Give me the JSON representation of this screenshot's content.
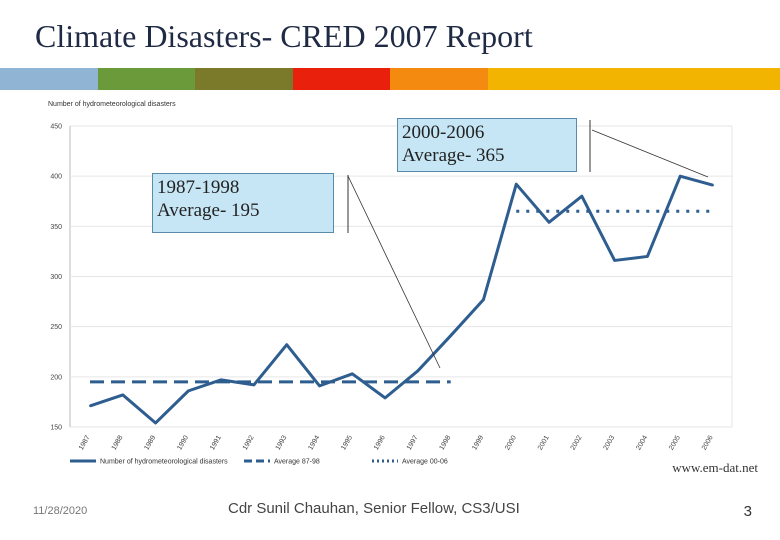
{
  "slide": {
    "title": "Climate Disasters- CRED 2007 Report",
    "stripe_colors": [
      "#8fb4d4",
      "#6b9a3a",
      "#7a7a2a",
      "#e8200c",
      "#f58a10",
      "#f2b400",
      "#f2b400",
      "#f2b400"
    ],
    "source": "www.em-dat.net",
    "footer_date": "11/28/2020",
    "footer_text": "Cdr Sunil Chauhan, Senior Fellow, CS3/USI",
    "page_number": "3"
  },
  "callouts": {
    "early": {
      "line1": "1987-1998",
      "line2": "Average- 195"
    },
    "late": {
      "line1": "2000-2006",
      "line2": "Average- 365"
    }
  },
  "chart_data": {
    "type": "line",
    "ylabel": "Number of hydrometeorological disasters",
    "ylim": [
      150,
      450
    ],
    "yticks": [
      150,
      200,
      250,
      300,
      350,
      400,
      450
    ],
    "categories": [
      "1987",
      "1988",
      "1989",
      "1990",
      "1991",
      "1992",
      "1993",
      "1994",
      "1995",
      "1996",
      "1997",
      "1998",
      "1999",
      "2000",
      "2001",
      "2002",
      "2003",
      "2004",
      "2005",
      "2006"
    ],
    "series": [
      {
        "name": "Number of hydrometeorological disasters",
        "style": "solid",
        "color": "#2e5d8f",
        "values": [
          171,
          182,
          154,
          186,
          197,
          192,
          232,
          191,
          203,
          179,
          206,
          241,
          277,
          392,
          354,
          380,
          316,
          320,
          400,
          391
        ]
      },
      {
        "name": "Average 87-98",
        "style": "dashed",
        "color": "#2e5d8f",
        "value": 195,
        "range": [
          "1987",
          "1998"
        ]
      },
      {
        "name": "Average 00-06",
        "style": "dotted",
        "color": "#2e5d8f",
        "value": 365,
        "range": [
          "2000",
          "2006"
        ]
      }
    ]
  }
}
